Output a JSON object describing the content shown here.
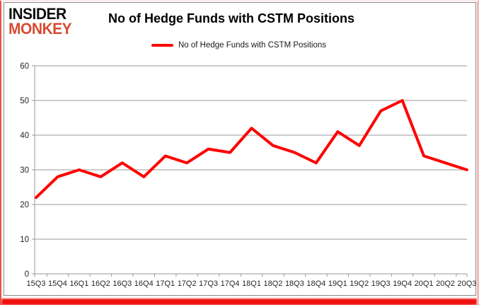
{
  "logo": {
    "line1": "INSIDER",
    "line2": "MONKEY",
    "accent_color": "#d74b32"
  },
  "header": {
    "title": "No of Hedge Funds with CSTM Positions"
  },
  "legend": {
    "label": "No of Hedge Funds with CSTM Positions",
    "line_color": "#ff0000"
  },
  "colors": {
    "series_line": "#ff0000",
    "grid_line": "#9a9a9a",
    "axis_text": "#262626",
    "bottom_bar": "#f01010",
    "frame_right": "#f3b9b9",
    "frame_left": "#e8514a"
  },
  "chart_data": {
    "type": "line",
    "title": "No of Hedge Funds with CSTM Positions",
    "categories": [
      "15Q3",
      "15Q4",
      "16Q1",
      "16Q2",
      "16Q3",
      "16Q4",
      "17Q1",
      "17Q2",
      "17Q3",
      "17Q4",
      "18Q1",
      "18Q2",
      "18Q3",
      "18Q4",
      "19Q1",
      "19Q2",
      "19Q3",
      "19Q4",
      "20Q1",
      "20Q2",
      "20Q3"
    ],
    "series": [
      {
        "name": "No of Hedge Funds with CSTM Positions",
        "color": "#ff0000",
        "values": [
          22,
          28,
          30,
          28,
          32,
          28,
          34,
          32,
          36,
          35,
          42,
          37,
          35,
          32,
          41,
          37,
          47,
          50,
          34,
          32,
          30
        ]
      }
    ],
    "xlabel": "",
    "ylabel": "",
    "ylim": [
      0,
      60
    ],
    "ytick_step": 10,
    "grid": true,
    "legend_position": "top"
  }
}
